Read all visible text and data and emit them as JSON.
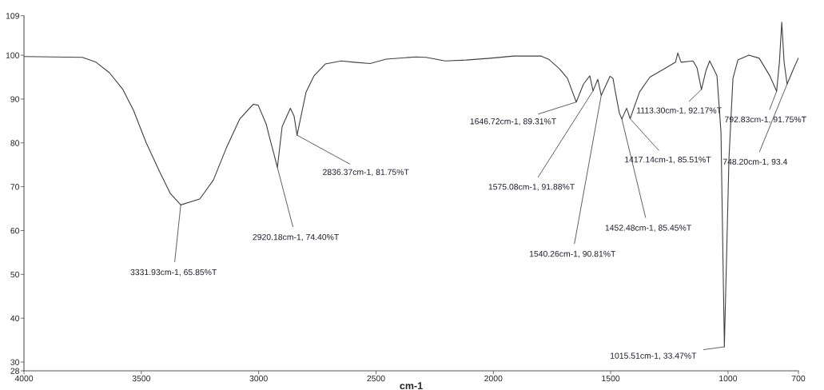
{
  "chart_data": {
    "type": "line",
    "xlabel": "cm-1",
    "x": [
      4000,
      3751,
      3693,
      3636,
      3580,
      3533,
      3479,
      3421,
      3377,
      3331.93,
      3251,
      3193,
      3138,
      3080,
      3023,
      3002,
      2968,
      2954,
      2937,
      2920.18,
      2900,
      2865,
      2849,
      2836.37,
      2798,
      2764,
      2716,
      2648,
      2593,
      2525,
      2457,
      2331,
      2287,
      2205,
      2116,
      2014,
      1912,
      1796,
      1762,
      1718,
      1684,
      1646.72,
      1616,
      1589,
      1575.08,
      1555,
      1540.26,
      1503,
      1490,
      1480,
      1463,
      1452.48,
      1432,
      1417.14,
      1377,
      1333,
      1265,
      1224,
      1214,
      1200,
      1149,
      1132,
      1113.3,
      1094,
      1078,
      1047,
      1030,
      1015.51,
      996,
      979,
      958,
      911,
      867,
      822,
      792.83,
      781,
      771,
      761,
      748.2,
      724,
      700
    ],
    "series": [
      {
        "color": "#404040",
        "values": [
          99.7,
          99.5,
          98.4,
          96.0,
          92.3,
          87.4,
          80.0,
          73.3,
          68.5,
          65.85,
          67.2,
          71.5,
          78.8,
          85.5,
          88.8,
          88.6,
          84.3,
          81.3,
          77.9,
          74.4,
          83.7,
          87.9,
          86.1,
          81.75,
          91.6,
          95.3,
          98.0,
          98.7,
          98.4,
          98.1,
          99.1,
          99.6,
          99.5,
          98.7,
          98.9,
          99.3,
          99.8,
          99.8,
          99.0,
          96.9,
          94.7,
          89.31,
          93.4,
          95.3,
          91.88,
          94.5,
          90.81,
          95.2,
          94.7,
          91.6,
          86.8,
          85.45,
          87.9,
          85.51,
          91.6,
          95.0,
          97.1,
          98.4,
          100.5,
          98.4,
          98.7,
          97.1,
          92.17,
          96.5,
          98.7,
          95.3,
          82.4,
          33.47,
          76.4,
          94.7,
          98.9,
          100.0,
          99.3,
          95.3,
          91.75,
          98.4,
          107.5,
          98.4,
          93.4,
          96.5,
          99.4
        ]
      }
    ],
    "xlim": [
      4000,
      700
    ],
    "xticks": [
      4000,
      3500,
      3000,
      2500,
      2000,
      1500,
      1000,
      700
    ],
    "ylim": [
      28,
      109
    ],
    "yticks": [
      28,
      30,
      40,
      50,
      60,
      70,
      80,
      90,
      100,
      109
    ],
    "grid": false,
    "annotations": [
      {
        "text": "3331.93cm-1, 65.85%T",
        "x": 3331.93,
        "y": 65.85
      },
      {
        "text": "2920.18cm-1, 74.40%T",
        "x": 2920.18,
        "y": 74.4
      },
      {
        "text": "2836.37cm-1, 81.75%T",
        "x": 2836.37,
        "y": 81.75
      },
      {
        "text": "1646.72cm-1, 89.31%T",
        "x": 1646.72,
        "y": 89.31
      },
      {
        "text": "1575.08cm-1, 91.88%T",
        "x": 1575.08,
        "y": 91.88
      },
      {
        "text": "1540.26cm-1, 90.81%T",
        "x": 1540.26,
        "y": 90.81
      },
      {
        "text": "1452.48cm-1, 85.45%T",
        "x": 1452.48,
        "y": 85.45
      },
      {
        "text": "1417.14cm-1, 85.51%T",
        "x": 1417.14,
        "y": 85.51
      },
      {
        "text": "1113.30cm-1, 92.17%T",
        "x": 1113.3,
        "y": 92.17
      },
      {
        "text": "1015.51cm-1, 33.47%T",
        "x": 1015.51,
        "y": 33.47
      },
      {
        "text": "792.83cm-1, 91.75%T",
        "x": 792.83,
        "y": 91.75
      },
      {
        "text": "748.20cm-1, 93.4",
        "x": 748.2,
        "y": 93.4
      }
    ]
  }
}
